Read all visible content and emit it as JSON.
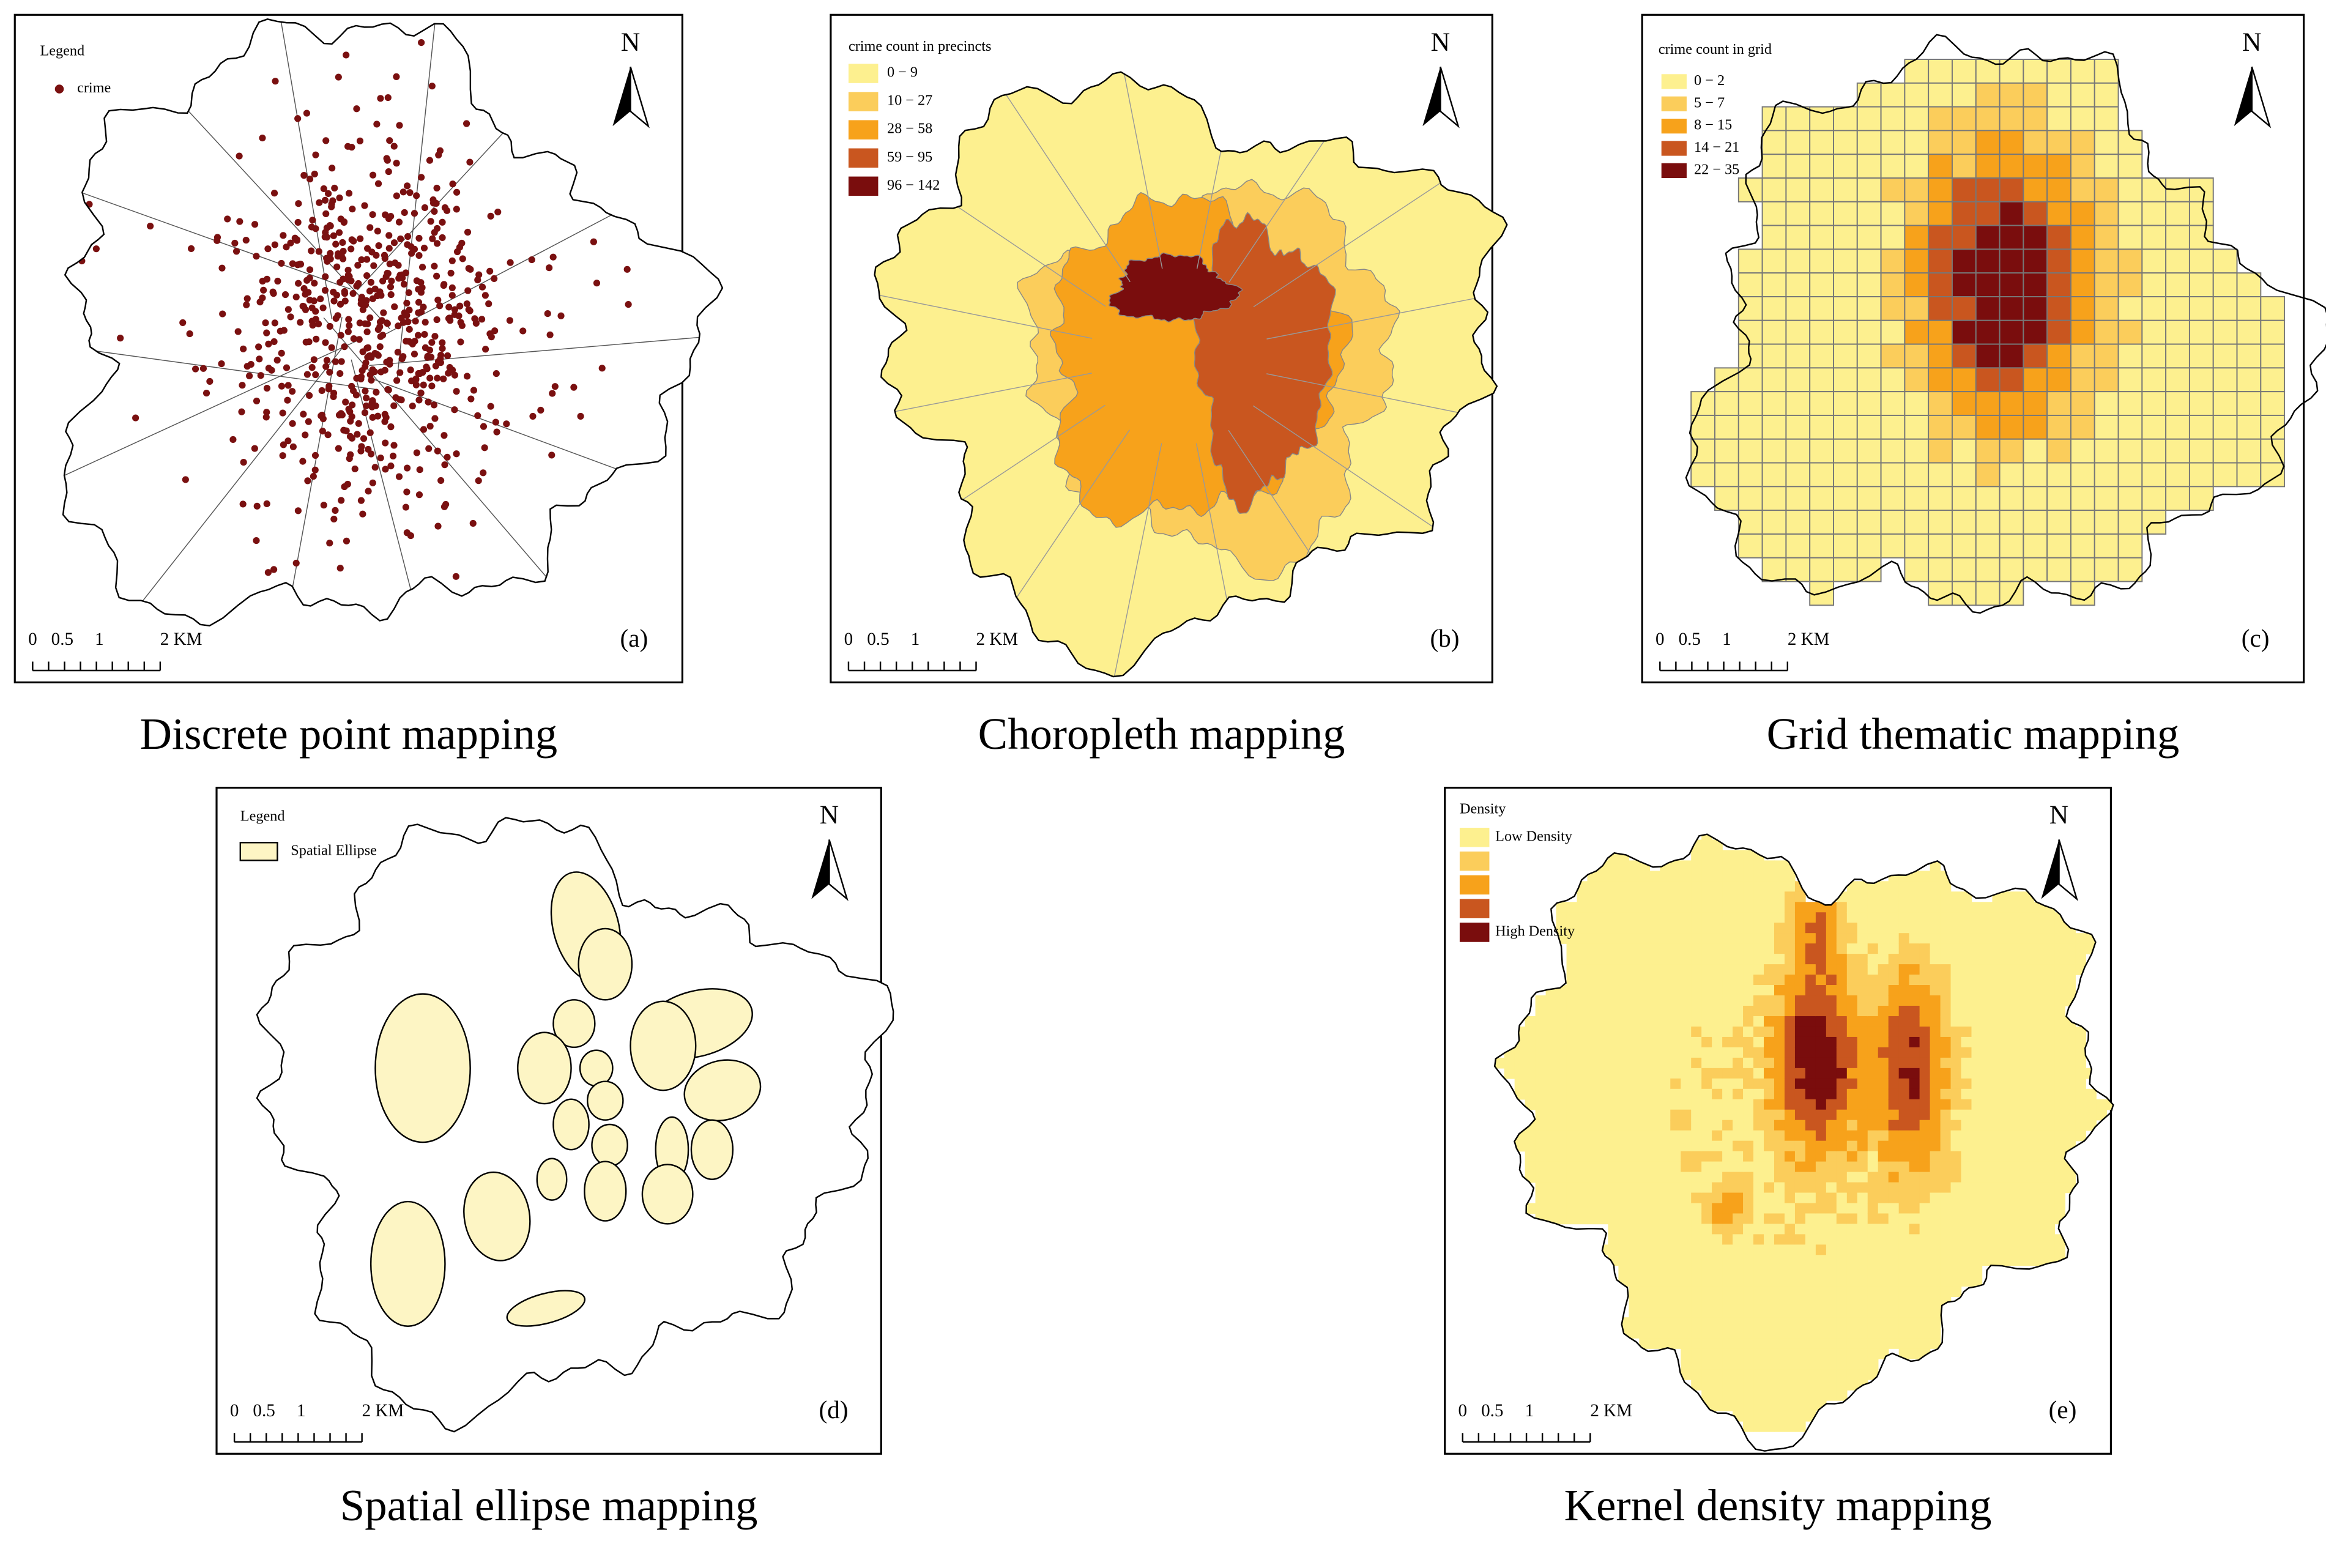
{
  "panels": [
    {
      "label": "(a)",
      "caption": "Discrete point mapping",
      "legend_title": "Legend",
      "legend_items": [
        {
          "label": "crime",
          "color": "#7a1010"
        }
      ],
      "north": "N",
      "scale_labels": [
        "0",
        "0.5",
        "1",
        "2 KM"
      ]
    },
    {
      "label": "(b)",
      "caption": "Choropleth mapping",
      "legend_title": "crime count in precincts",
      "legend_items": [
        {
          "label": "0 − 9",
          "color": "#fdf08f"
        },
        {
          "label": "10 − 27",
          "color": "#fbcd5b"
        },
        {
          "label": "28 − 58",
          "color": "#f7a21b"
        },
        {
          "label": "59 − 95",
          "color": "#c9561f"
        },
        {
          "label": "96 − 142",
          "color": "#7a0d0d"
        }
      ],
      "north": "N",
      "scale_labels": [
        "0",
        "0.5",
        "1",
        "2 KM"
      ]
    },
    {
      "label": "(c)",
      "caption": "Grid thematic mapping",
      "legend_title": "crime count in grid",
      "legend_items": [
        {
          "label": "0 − 2",
          "color": "#fdf08f"
        },
        {
          "label": "5 − 7",
          "color": "#fbcd5b"
        },
        {
          "label": "8 − 15",
          "color": "#f7a21b"
        },
        {
          "label": "14 − 21",
          "color": "#c9561f"
        },
        {
          "label": "22 − 35",
          "color": "#7a0d0d"
        }
      ],
      "north": "N",
      "scale_labels": [
        "0",
        "0.5",
        "1",
        "2 KM"
      ]
    },
    {
      "label": "(d)",
      "caption": "Spatial ellipse mapping",
      "legend_title": "Legend",
      "legend_items": [
        {
          "label": "Spatial  Ellipse",
          "color": "#fdf5c4"
        }
      ],
      "north": "N",
      "scale_labels": [
        "0",
        "0.5",
        "1",
        "2 KM"
      ]
    },
    {
      "label": "(e)",
      "caption": "Kernel density mapping",
      "legend_title": "Density",
      "legend_items": [
        {
          "label": "Low Density",
          "color": "#fdf08f"
        },
        {
          "color": "#fbcd5b"
        },
        {
          "color": "#f7a21b"
        },
        {
          "color": "#c9561f"
        },
        {
          "label": "High  Density",
          "color": "#7a0d0d"
        }
      ],
      "north": "N",
      "scale_labels": [
        "0",
        "0.5",
        "1",
        "2 KM"
      ]
    }
  ]
}
